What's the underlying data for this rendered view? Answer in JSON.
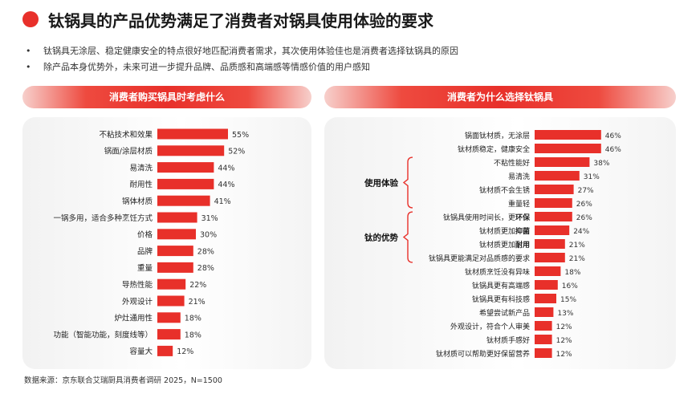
{
  "header": {
    "title": "钛锅具的产品优势满足了消费者对锅具使用体验的要求",
    "bullets": [
      "钛锅具无涂层、稳定健康安全的特点很好地匹配消费者需求，其次使用体验佳也是消费者选择钛锅具的原因",
      "除产品本身优势外，未来可进一步提升品牌、品质感和高端感等情感价值的用户感知"
    ],
    "bullet_glyph": "•"
  },
  "colors": {
    "accent": "#e8302a",
    "bar": "#e8302a"
  },
  "chart_data": [
    {
      "type": "bar",
      "orientation": "horizontal",
      "title": "消费者购买锅具时考虑什么",
      "categories": [
        "不粘技术和效果",
        "锅面/涂层材质",
        "易清洗",
        "耐用性",
        "锅体材质",
        "一锅多用，适合多种烹饪方式",
        "价格",
        "品牌",
        "重量",
        "导热性能",
        "外观设计",
        "炉灶通用性",
        "功能（智能功能，刻度线等）",
        "容量大"
      ],
      "values": [
        55,
        52,
        44,
        44,
        41,
        31,
        30,
        28,
        28,
        22,
        21,
        18,
        18,
        12
      ],
      "value_labels": [
        "55%",
        "52%",
        "44%",
        "44%",
        "41%",
        "31%",
        "30%",
        "28%",
        "28%",
        "22%",
        "21%",
        "18%",
        "18%",
        "12%"
      ],
      "unit": "%",
      "xlim": [
        0,
        100
      ],
      "grid": false,
      "legend": "none"
    },
    {
      "type": "bar",
      "orientation": "horizontal",
      "title": "消费者为什么选择钛锅具",
      "categories": [
        "锅面钛材质，无涂层",
        "钛材质稳定，健康安全",
        "不粘性能好",
        "易清洗",
        "钛材质不会生锈",
        "重量轻",
        "钛锅具使用时间长，更环保",
        "钛材质更加抑菌",
        "钛材质更加耐用",
        "钛锅具更能满足对品质感的要求",
        "钛材质烹饪没有异味",
        "钛锅具更有高端感",
        "钛锅具更有科技感",
        "希望尝试新产品",
        "外观设计，符合个人审美",
        "钛材质手感好",
        "钛材质可以帮助更好保留营养"
      ],
      "values": [
        46,
        46,
        38,
        31,
        27,
        26,
        26,
        24,
        21,
        21,
        18,
        16,
        15,
        13,
        12,
        12,
        12
      ],
      "value_labels": [
        "46%",
        "46%",
        "38%",
        "31%",
        "27%",
        "26%",
        "26%",
        "24%",
        "21%",
        "21%",
        "18%",
        "16%",
        "15%",
        "13%",
        "12%",
        "12%",
        "12%"
      ],
      "unit": "%",
      "xlim": [
        0,
        100
      ],
      "groups": [
        {
          "label": "使用体验",
          "first": 2,
          "last": 5
        },
        {
          "label": "钛的优势",
          "first": 6,
          "last": 9
        }
      ],
      "bold_fragments": {
        "6": "环保",
        "7": "抑菌",
        "8": "耐用"
      },
      "grid": false,
      "legend": "none"
    }
  ],
  "footer": {
    "source": "数据来源：京东联合艾瑞厨具消费者调研 2025，N=1500"
  }
}
